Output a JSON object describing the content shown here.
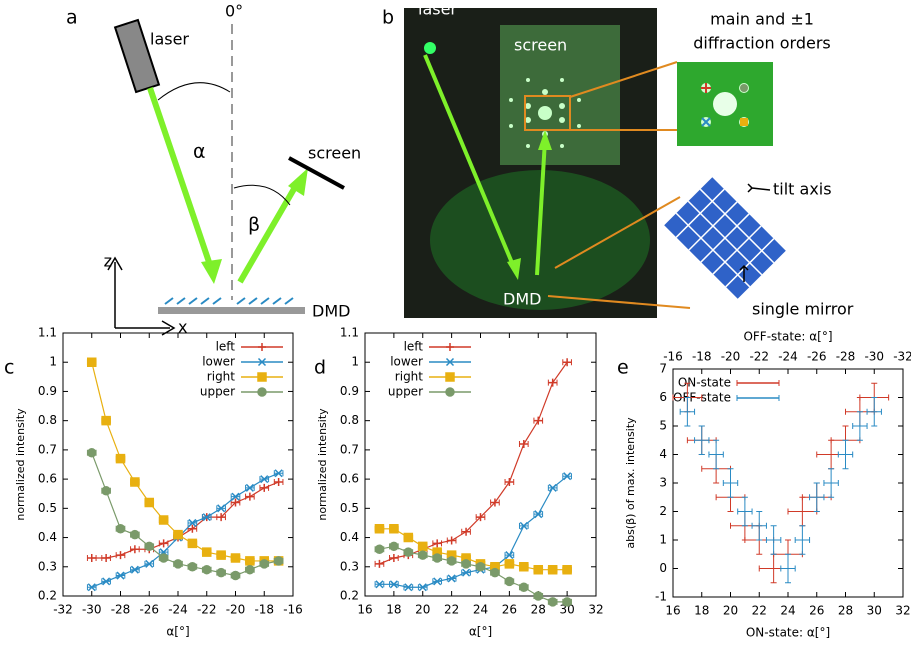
{
  "panels": [
    "a",
    "b",
    "c",
    "d",
    "e"
  ],
  "diagram": {
    "a": {
      "laser": "laser",
      "zero": "0°",
      "alpha": "α",
      "beta": "β",
      "screen": "screen",
      "z": "z",
      "x": "x",
      "dmd": "DMD"
    },
    "b": {
      "laser": "laser",
      "screen": "screen",
      "dmd": "DMD",
      "orders": [
        "main and ±1",
        "diffraction orders"
      ],
      "tilt_axis": "tilt axis",
      "single_mirror": "single mirror"
    }
  },
  "chart_data": [
    {
      "type": "line",
      "xlabel": "α[°]",
      "ylabel": "normalized intensity",
      "legend": "upper right",
      "x": [
        -30,
        -29,
        -28,
        -27,
        -26,
        -25,
        -24,
        -23,
        -22,
        -21,
        -20,
        -19,
        -18,
        -17
      ],
      "xlim": [
        -32,
        -16
      ],
      "xticks": [
        -32,
        -30,
        -28,
        -26,
        -24,
        -22,
        -20,
        -18,
        -16
      ],
      "ylim": [
        0.2,
        1.1
      ],
      "yticks": [
        0.2,
        0.3,
        0.4,
        0.5,
        0.6,
        0.7,
        0.8,
        0.9,
        1,
        1.1
      ],
      "series": [
        {
          "name": "left",
          "color": "#d03a28",
          "marker": "plus",
          "xerr": 0.3,
          "values": [
            0.33,
            0.33,
            0.34,
            0.36,
            0.36,
            0.38,
            0.4,
            0.43,
            0.47,
            0.47,
            0.52,
            0.54,
            0.57,
            0.59
          ]
        },
        {
          "name": "lower",
          "color": "#2a8bc4",
          "marker": "cross",
          "xerr": 0.3,
          "values": [
            0.23,
            0.25,
            0.27,
            0.29,
            0.31,
            0.35,
            0.4,
            0.45,
            0.47,
            0.5,
            0.54,
            0.57,
            0.6,
            0.62
          ]
        },
        {
          "name": "right",
          "color": "#e8b010",
          "marker": "square",
          "xerr": 0.3,
          "values": [
            1.0,
            0.8,
            0.67,
            0.59,
            0.52,
            0.46,
            0.41,
            0.38,
            0.35,
            0.34,
            0.33,
            0.32,
            0.32,
            0.32
          ]
        },
        {
          "name": "upper",
          "color": "#7a9a6a",
          "marker": "circle",
          "xerr": 0.3,
          "values": [
            0.69,
            0.56,
            0.43,
            0.41,
            0.37,
            0.33,
            0.31,
            0.3,
            0.29,
            0.28,
            0.27,
            0.29,
            0.31,
            0.32
          ]
        }
      ]
    },
    {
      "type": "line",
      "xlabel": "α[°]",
      "ylabel": "normalized intensity",
      "legend": "upper left",
      "x": [
        17,
        18,
        19,
        20,
        21,
        22,
        23,
        24,
        25,
        26,
        27,
        28,
        29,
        30
      ],
      "xlim": [
        16,
        32
      ],
      "xticks": [
        16,
        18,
        20,
        22,
        24,
        26,
        28,
        30,
        32
      ],
      "ylim": [
        0.2,
        1.1
      ],
      "yticks": [
        0.2,
        0.3,
        0.4,
        0.5,
        0.6,
        0.7,
        0.8,
        0.9,
        1,
        1.1
      ],
      "series": [
        {
          "name": "left",
          "color": "#d03a28",
          "marker": "plus",
          "xerr": 0.3,
          "values": [
            0.31,
            0.33,
            0.34,
            0.36,
            0.38,
            0.39,
            0.42,
            0.47,
            0.52,
            0.59,
            0.72,
            0.8,
            0.93,
            1.0
          ]
        },
        {
          "name": "lower",
          "color": "#2a8bc4",
          "marker": "cross",
          "xerr": 0.3,
          "values": [
            0.24,
            0.24,
            0.23,
            0.23,
            0.25,
            0.26,
            0.28,
            0.29,
            0.3,
            0.34,
            0.44,
            0.48,
            0.57,
            0.61
          ]
        },
        {
          "name": "right",
          "color": "#e8b010",
          "marker": "square",
          "xerr": 0.3,
          "values": [
            0.43,
            0.43,
            0.4,
            0.37,
            0.35,
            0.34,
            0.33,
            0.31,
            0.3,
            0.31,
            0.3,
            0.29,
            0.29,
            0.29
          ]
        },
        {
          "name": "upper",
          "color": "#7a9a6a",
          "marker": "circle",
          "xerr": 0.3,
          "values": [
            0.36,
            0.37,
            0.35,
            0.34,
            0.33,
            0.32,
            0.31,
            0.3,
            0.28,
            0.25,
            0.23,
            0.2,
            0.18,
            0.18
          ]
        }
      ]
    },
    {
      "type": "errorbar",
      "xlabel": "ON-state: α[°]",
      "x2label": "OFF-state: α[°]",
      "ylabel": "abs(β) of max. intensity",
      "legend": "upper center",
      "xlim": [
        16,
        32
      ],
      "xticks": [
        16,
        18,
        20,
        22,
        24,
        26,
        28,
        30,
        32
      ],
      "x2lim": [
        -16,
        -32
      ],
      "x2ticks": [
        -16,
        -18,
        -20,
        -22,
        -24,
        -26,
        -28,
        -30,
        -32
      ],
      "ylim": [
        -1,
        7
      ],
      "yticks": [
        -1,
        0,
        1,
        2,
        3,
        4,
        5,
        6,
        7
      ],
      "series": [
        {
          "name": "ON-state",
          "color": "#d03a28",
          "axis": "x",
          "xerr": 1,
          "yerr": 0.5,
          "x": [
            17,
            18,
            19,
            20,
            21,
            22,
            23,
            24,
            25,
            26,
            27,
            28,
            29,
            30
          ],
          "values": [
            6,
            4.5,
            3.5,
            2.5,
            1.5,
            1,
            0,
            0.5,
            2,
            2.5,
            4,
            4.5,
            5.5,
            6
          ]
        },
        {
          "name": "OFF-state",
          "color": "#2a8bc4",
          "axis": "x2",
          "xerr": 0.5,
          "yerr": 0.5,
          "x": [
            -17,
            -18,
            -19,
            -20,
            -21,
            -22,
            -23,
            -24,
            -25,
            -26,
            -27,
            -28,
            -29,
            -30
          ],
          "values": [
            5.5,
            4.5,
            4,
            3,
            2,
            1.5,
            1,
            0,
            1,
            2.5,
            3,
            4,
            5,
            5.5
          ]
        }
      ]
    }
  ]
}
